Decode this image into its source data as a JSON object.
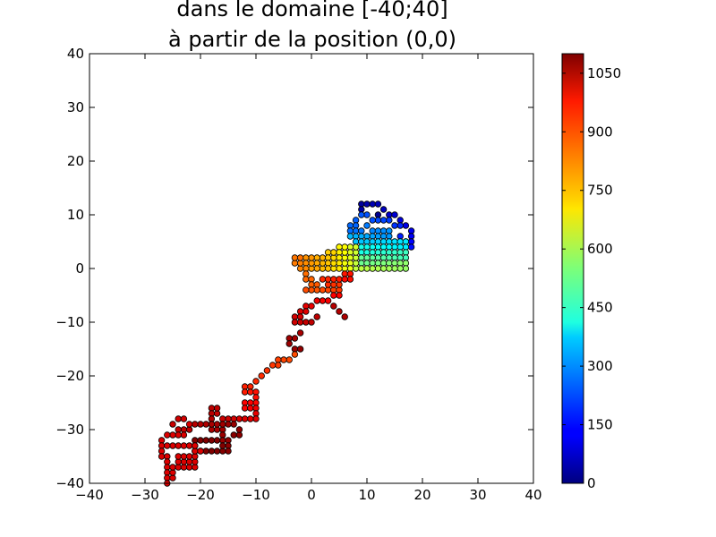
{
  "chart_data": {
    "type": "scatter",
    "title_lines": [
      "dans le domaine [-40;40]",
      "à partir de la position (0,0)"
    ],
    "xlabel": "",
    "ylabel": "",
    "xlim": [
      -40,
      40
    ],
    "ylim": [
      -40,
      40
    ],
    "x_ticks": [
      -40,
      -30,
      -20,
      -10,
      0,
      10,
      20,
      30,
      40
    ],
    "y_ticks": [
      -40,
      -30,
      -20,
      -10,
      0,
      10,
      20,
      30,
      40
    ],
    "x_tick_labels": [
      "−40",
      "−30",
      "−20",
      "−10",
      "0",
      "10",
      "20",
      "30",
      "40"
    ],
    "y_tick_labels": [
      "−40",
      "−30",
      "−20",
      "−10",
      "0",
      "10",
      "20",
      "30",
      "40"
    ],
    "grid": false,
    "colormap": "jet",
    "colorbar": {
      "range": [
        0,
        1100
      ],
      "ticks": [
        0,
        150,
        300,
        450,
        600,
        750,
        900,
        1050
      ],
      "tick_labels": [
        "0",
        "150",
        "300",
        "450",
        "600",
        "750",
        "900",
        "1050"
      ]
    },
    "points": [
      [
        12,
        10,
        20
      ],
      [
        9,
        12,
        30
      ],
      [
        9,
        11,
        40
      ],
      [
        10,
        12,
        50
      ],
      [
        11,
        12,
        55
      ],
      [
        12,
        12,
        60
      ],
      [
        13,
        11,
        70
      ],
      [
        14,
        10,
        80
      ],
      [
        15,
        10,
        90
      ],
      [
        16,
        9,
        100
      ],
      [
        17,
        8,
        110
      ],
      [
        18,
        7,
        120
      ],
      [
        18,
        6,
        130
      ],
      [
        18,
        5,
        140
      ],
      [
        18,
        4,
        150
      ],
      [
        17,
        5,
        160
      ],
      [
        16,
        6,
        170
      ],
      [
        16,
        8,
        180
      ],
      [
        15,
        8,
        190
      ],
      [
        14,
        9,
        200
      ],
      [
        13,
        9,
        210
      ],
      [
        12,
        9,
        215
      ],
      [
        11,
        9,
        220
      ],
      [
        10,
        10,
        225
      ],
      [
        9,
        10,
        230
      ],
      [
        8,
        9,
        240
      ],
      [
        8,
        8,
        245
      ],
      [
        7,
        8,
        250
      ],
      [
        7,
        7,
        255
      ],
      [
        8,
        7,
        260
      ],
      [
        9,
        7,
        265
      ],
      [
        10,
        8,
        270
      ],
      [
        11,
        7,
        280
      ],
      [
        12,
        7,
        285
      ],
      [
        13,
        7,
        290
      ],
      [
        14,
        7,
        295
      ],
      [
        14,
        6,
        300
      ],
      [
        13,
        6,
        305
      ],
      [
        12,
        6,
        310
      ],
      [
        11,
        6,
        315
      ],
      [
        10,
        6,
        320
      ],
      [
        9,
        6,
        325
      ],
      [
        8,
        6,
        330
      ],
      [
        7,
        6,
        335
      ],
      [
        8,
        5,
        345
      ],
      [
        9,
        5,
        350
      ],
      [
        10,
        5,
        355
      ],
      [
        11,
        5,
        360
      ],
      [
        12,
        5,
        365
      ],
      [
        13,
        5,
        370
      ],
      [
        14,
        5,
        375
      ],
      [
        15,
        5,
        380
      ],
      [
        16,
        5,
        385
      ],
      [
        17,
        5,
        390
      ],
      [
        17,
        4,
        395
      ],
      [
        16,
        4,
        400
      ],
      [
        15,
        4,
        405
      ],
      [
        14,
        4,
        410
      ],
      [
        13,
        4,
        415
      ],
      [
        12,
        4,
        420
      ],
      [
        11,
        4,
        425
      ],
      [
        10,
        4,
        430
      ],
      [
        9,
        4,
        435
      ],
      [
        9,
        3,
        440
      ],
      [
        10,
        3,
        445
      ],
      [
        11,
        3,
        450
      ],
      [
        12,
        3,
        455
      ],
      [
        13,
        3,
        460
      ],
      [
        14,
        3,
        465
      ],
      [
        15,
        3,
        470
      ],
      [
        16,
        3,
        475
      ],
      [
        17,
        3,
        480
      ],
      [
        17,
        2,
        485
      ],
      [
        16,
        2,
        490
      ],
      [
        15,
        2,
        495
      ],
      [
        14,
        2,
        500
      ],
      [
        13,
        2,
        505
      ],
      [
        12,
        2,
        510
      ],
      [
        11,
        2,
        515
      ],
      [
        10,
        2,
        520
      ],
      [
        9,
        2,
        525
      ],
      [
        9,
        1,
        530
      ],
      [
        10,
        1,
        535
      ],
      [
        11,
        1,
        540
      ],
      [
        12,
        1,
        545
      ],
      [
        13,
        1,
        550
      ],
      [
        14,
        1,
        555
      ],
      [
        15,
        1,
        560
      ],
      [
        16,
        1,
        565
      ],
      [
        17,
        1,
        570
      ],
      [
        17,
        0,
        575
      ],
      [
        16,
        0,
        580
      ],
      [
        15,
        0,
        585
      ],
      [
        14,
        0,
        590
      ],
      [
        13,
        0,
        595
      ],
      [
        12,
        0,
        600
      ],
      [
        11,
        0,
        605
      ],
      [
        10,
        0,
        610
      ],
      [
        9,
        0,
        615
      ],
      [
        8,
        0,
        620
      ],
      [
        8,
        1,
        625
      ],
      [
        8,
        2,
        630
      ],
      [
        8,
        3,
        635
      ],
      [
        8,
        4,
        640
      ],
      [
        7,
        4,
        645
      ],
      [
        7,
        3,
        650
      ],
      [
        7,
        2,
        655
      ],
      [
        7,
        1,
        660
      ],
      [
        7,
        0,
        665
      ],
      [
        6,
        0,
        670
      ],
      [
        6,
        1,
        675
      ],
      [
        6,
        2,
        680
      ],
      [
        6,
        3,
        685
      ],
      [
        6,
        4,
        690
      ],
      [
        5,
        4,
        695
      ],
      [
        5,
        3,
        700
      ],
      [
        5,
        2,
        705
      ],
      [
        5,
        1,
        710
      ],
      [
        5,
        0,
        715
      ],
      [
        4,
        0,
        720
      ],
      [
        4,
        1,
        725
      ],
      [
        4,
        2,
        730
      ],
      [
        4,
        3,
        735
      ],
      [
        3,
        3,
        740
      ],
      [
        3,
        2,
        745
      ],
      [
        3,
        1,
        750
      ],
      [
        3,
        0,
        755
      ],
      [
        2,
        0,
        760
      ],
      [
        2,
        1,
        765
      ],
      [
        2,
        2,
        770
      ],
      [
        1,
        2,
        775
      ],
      [
        1,
        1,
        780
      ],
      [
        1,
        0,
        785
      ],
      [
        0,
        0,
        790
      ],
      [
        0,
        1,
        795
      ],
      [
        0,
        2,
        800
      ],
      [
        -1,
        2,
        805
      ],
      [
        -1,
        1,
        810
      ],
      [
        -1,
        0,
        815
      ],
      [
        -2,
        0,
        820
      ],
      [
        -2,
        1,
        825
      ],
      [
        -3,
        1,
        830
      ],
      [
        -3,
        2,
        835
      ],
      [
        -2,
        2,
        840
      ],
      [
        -1,
        -1,
        845
      ],
      [
        -1,
        -2,
        850
      ],
      [
        0,
        -2,
        855
      ],
      [
        0,
        -3,
        860
      ],
      [
        1,
        -3,
        865
      ],
      [
        1,
        -4,
        870
      ],
      [
        0,
        -4,
        875
      ],
      [
        -1,
        -4,
        880
      ],
      [
        2,
        -4,
        885
      ],
      [
        3,
        -4,
        890
      ],
      [
        4,
        -4,
        895
      ],
      [
        5,
        -4,
        900
      ],
      [
        5,
        -3,
        905
      ],
      [
        4,
        -3,
        910
      ],
      [
        3,
        -3,
        915
      ],
      [
        2,
        -2,
        920
      ],
      [
        3,
        -2,
        925
      ],
      [
        4,
        -2,
        930
      ],
      [
        5,
        -2,
        935
      ],
      [
        6,
        -1,
        940
      ],
      [
        7,
        -1,
        945
      ],
      [
        7,
        -2,
        950
      ],
      [
        6,
        -2,
        955
      ],
      [
        5,
        -5,
        960
      ],
      [
        4,
        -5,
        965
      ],
      [
        3,
        -6,
        970
      ],
      [
        2,
        -6,
        975
      ],
      [
        1,
        -6,
        980
      ],
      [
        0,
        -7,
        985
      ],
      [
        -1,
        -7,
        990
      ],
      [
        -1,
        -8,
        995
      ],
      [
        -2,
        -8,
        1000
      ],
      [
        -2,
        -9,
        1005
      ],
      [
        -3,
        -9,
        1010
      ],
      [
        -3,
        -10,
        1015
      ],
      [
        -2,
        -10,
        1020
      ],
      [
        -1,
        -10,
        1025
      ],
      [
        0,
        -10,
        1030
      ],
      [
        1,
        -9,
        1035
      ],
      [
        4,
        -7,
        1040
      ],
      [
        5,
        -8,
        1045
      ],
      [
        6,
        -9,
        1050
      ],
      [
        -2,
        -12,
        1055
      ],
      [
        -3,
        -13,
        1060
      ],
      [
        -4,
        -13,
        1065
      ],
      [
        -4,
        -14,
        1070
      ],
      [
        -3,
        -15,
        1075
      ],
      [
        -2,
        -15,
        1080
      ]
    ],
    "path_points": [
      [
        -3,
        -16,
        880
      ],
      [
        -4,
        -17,
        885
      ],
      [
        -5,
        -17,
        890
      ],
      [
        -6,
        -17,
        895
      ],
      [
        -6,
        -18,
        900
      ],
      [
        -7,
        -18,
        905
      ],
      [
        -8,
        -19,
        910
      ],
      [
        -9,
        -20,
        915
      ],
      [
        -10,
        -21,
        920
      ],
      [
        -11,
        -22,
        925
      ],
      [
        -12,
        -22,
        930
      ],
      [
        -12,
        -23,
        935
      ],
      [
        -11,
        -23,
        940
      ],
      [
        -10,
        -23,
        945
      ],
      [
        -10,
        -24,
        950
      ],
      [
        -10,
        -25,
        955
      ],
      [
        -11,
        -25,
        960
      ],
      [
        -12,
        -25,
        965
      ],
      [
        -12,
        -26,
        970
      ],
      [
        -11,
        -26,
        975
      ],
      [
        -10,
        -26,
        980
      ],
      [
        -10,
        -27,
        985
      ],
      [
        -10,
        -28,
        990
      ],
      [
        -11,
        -28,
        995
      ],
      [
        -12,
        -28,
        1000
      ],
      [
        -13,
        -28,
        1005
      ],
      [
        -14,
        -28,
        1010
      ],
      [
        -15,
        -28,
        1015
      ],
      [
        -16,
        -28,
        1020
      ],
      [
        -17,
        -27,
        1025
      ],
      [
        -17,
        -26,
        1030
      ],
      [
        -18,
        -26,
        1035
      ],
      [
        -18,
        -27,
        1040
      ],
      [
        -18,
        -28,
        1045
      ],
      [
        -18,
        -29,
        1050
      ],
      [
        -18,
        -30,
        1055
      ],
      [
        -17,
        -30,
        1060
      ],
      [
        -16,
        -30,
        1065
      ],
      [
        -16,
        -31,
        1070
      ],
      [
        -16,
        -32,
        1075
      ],
      [
        -15,
        -32,
        1080
      ],
      [
        -15,
        -33,
        1085
      ],
      [
        -15,
        -34,
        1090
      ],
      [
        -16,
        -34,
        1095
      ],
      [
        -17,
        -34,
        1100
      ],
      [
        -18,
        -34,
        1100
      ],
      [
        -19,
        -34,
        1100
      ],
      [
        -20,
        -34,
        1100
      ],
      [
        -21,
        -34,
        1100
      ],
      [
        -21,
        -33,
        1100
      ],
      [
        -21,
        -32,
        1100
      ],
      [
        -20,
        -32,
        1100
      ],
      [
        -19,
        -32,
        1100
      ],
      [
        -18,
        -32,
        1100
      ],
      [
        -17,
        -32,
        1100
      ],
      [
        -16,
        -33,
        1100
      ],
      [
        -14,
        -31,
        1090
      ],
      [
        -13,
        -31,
        1085
      ],
      [
        -13,
        -30,
        1080
      ],
      [
        -14,
        -29,
        1075
      ],
      [
        -15,
        -29,
        1070
      ],
      [
        -16,
        -29,
        1065
      ],
      [
        -17,
        -29,
        1060
      ],
      [
        -18,
        -29,
        1055
      ],
      [
        -19,
        -29,
        1050
      ],
      [
        -20,
        -29,
        1045
      ],
      [
        -21,
        -29,
        1040
      ],
      [
        -22,
        -30,
        1035
      ],
      [
        -23,
        -30,
        1030
      ],
      [
        -24,
        -30,
        1025
      ],
      [
        -25,
        -29,
        1020
      ],
      [
        -24,
        -28,
        1015
      ],
      [
        -23,
        -28,
        1010
      ],
      [
        -22,
        -29,
        1005
      ],
      [
        -23,
        -31,
        1000
      ],
      [
        -24,
        -31,
        1000
      ],
      [
        -25,
        -31,
        1000
      ],
      [
        -26,
        -31,
        1000
      ],
      [
        -27,
        -32,
        1000
      ],
      [
        -27,
        -33,
        1000
      ],
      [
        -27,
        -34,
        1000
      ],
      [
        -27,
        -35,
        1000
      ],
      [
        -26,
        -35,
        1000
      ],
      [
        -26,
        -36,
        1000
      ],
      [
        -26,
        -37,
        1000
      ],
      [
        -26,
        -38,
        1000
      ],
      [
        -26,
        -39,
        1000
      ],
      [
        -25,
        -39,
        1000
      ],
      [
        -25,
        -38,
        1000
      ],
      [
        -25,
        -37,
        1000
      ],
      [
        -24,
        -37,
        1000
      ],
      [
        -23,
        -37,
        1000
      ],
      [
        -22,
        -37,
        1000
      ],
      [
        -21,
        -37,
        1000
      ],
      [
        -21,
        -36,
        1000
      ],
      [
        -22,
        -36,
        1000
      ],
      [
        -23,
        -36,
        1000
      ],
      [
        -24,
        -36,
        1000
      ],
      [
        -24,
        -35,
        1000
      ],
      [
        -23,
        -35,
        1000
      ],
      [
        -22,
        -35,
        1000
      ],
      [
        -21,
        -35,
        1000
      ],
      [
        -21,
        -34,
        1000
      ],
      [
        -20,
        -34,
        1000
      ],
      [
        -25,
        -33,
        1000
      ],
      [
        -24,
        -33,
        1000
      ],
      [
        -23,
        -33,
        1000
      ],
      [
        -22,
        -33,
        1000
      ],
      [
        -21,
        -33,
        1000
      ],
      [
        -26,
        -40,
        1000
      ],
      [
        -26,
        -33,
        1000
      ]
    ]
  }
}
